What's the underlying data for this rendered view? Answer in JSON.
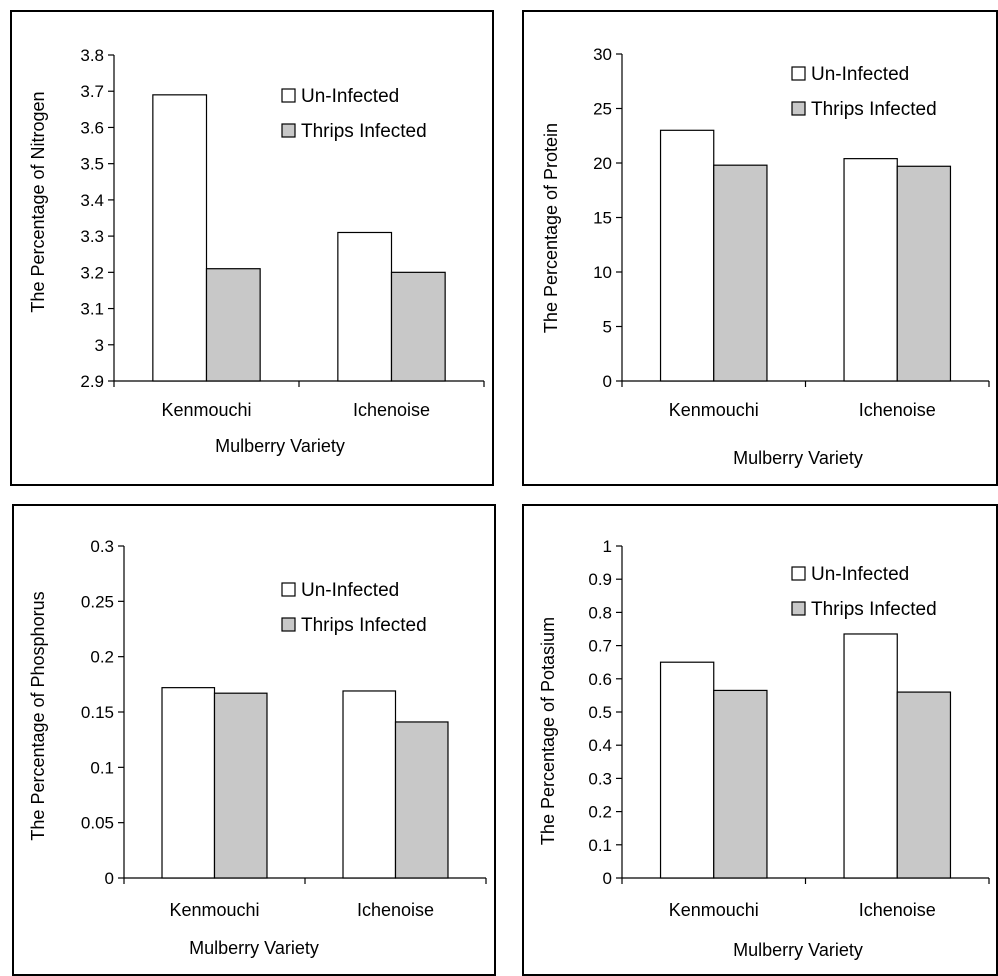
{
  "chart_data": [
    {
      "type": "bar",
      "categories": [
        "Kenmouchi",
        "Ichenoise"
      ],
      "series": [
        {
          "name": "Un-Infected",
          "values": [
            3.69,
            3.31
          ],
          "color": "#ffffff"
        },
        {
          "name": "Thrips Infected",
          "values": [
            3.21,
            3.2
          ],
          "color": "#c8c8c8"
        }
      ],
      "xlabel": "Mulberry Variety",
      "ylabel": "The Percentage of Nitrogen",
      "ylim": [
        2.9,
        3.8
      ],
      "yticks": [
        "2.9",
        "3",
        "3.1",
        "3.2",
        "3.3",
        "3.4",
        "3.5",
        "3.6",
        "3.7",
        "3.8"
      ],
      "grid": false,
      "legend": "top-right"
    },
    {
      "type": "bar",
      "categories": [
        "Kenmouchi",
        "Ichenoise"
      ],
      "series": [
        {
          "name": "Un-Infected",
          "values": [
            23.0,
            20.4
          ],
          "color": "#ffffff"
        },
        {
          "name": "Thrips Infected",
          "values": [
            19.8,
            19.7
          ],
          "color": "#c8c8c8"
        }
      ],
      "xlabel": "Mulberry Variety",
      "ylabel": "The Percentage of Protein",
      "ylim": [
        0,
        30
      ],
      "yticks": [
        "0",
        "5",
        "10",
        "15",
        "20",
        "25",
        "30"
      ],
      "grid": false,
      "legend": "top-right"
    },
    {
      "type": "bar",
      "categories": [
        "Kenmouchi",
        "Ichenoise"
      ],
      "series": [
        {
          "name": "Un-Infected",
          "values": [
            0.172,
            0.169
          ],
          "color": "#ffffff"
        },
        {
          "name": "Thrips Infected",
          "values": [
            0.167,
            0.141
          ],
          "color": "#c8c8c8"
        }
      ],
      "xlabel": "Mulberry Variety",
      "ylabel": "The Percentage of Phosphorus",
      "ylim": [
        0,
        0.3
      ],
      "yticks": [
        "0",
        "0.05",
        "0.1",
        "0.15",
        "0.2",
        "0.25",
        "0.3"
      ],
      "grid": false,
      "legend": "top-right"
    },
    {
      "type": "bar",
      "categories": [
        "Kenmouchi",
        "Ichenoise"
      ],
      "series": [
        {
          "name": "Un-Infected",
          "values": [
            0.65,
            0.735
          ],
          "color": "#ffffff"
        },
        {
          "name": "Thrips Infected",
          "values": [
            0.565,
            0.56
          ],
          "color": "#c8c8c8"
        }
      ],
      "xlabel": "Mulberry Variety",
      "ylabel": "The Percentage of Potasium",
      "ylim": [
        0,
        1
      ],
      "yticks": [
        "0",
        "0.1",
        "0.2",
        "0.3",
        "0.4",
        "0.5",
        "0.6",
        "0.7",
        "0.8",
        "0.9",
        "1"
      ],
      "grid": false,
      "legend": "top-right"
    }
  ]
}
